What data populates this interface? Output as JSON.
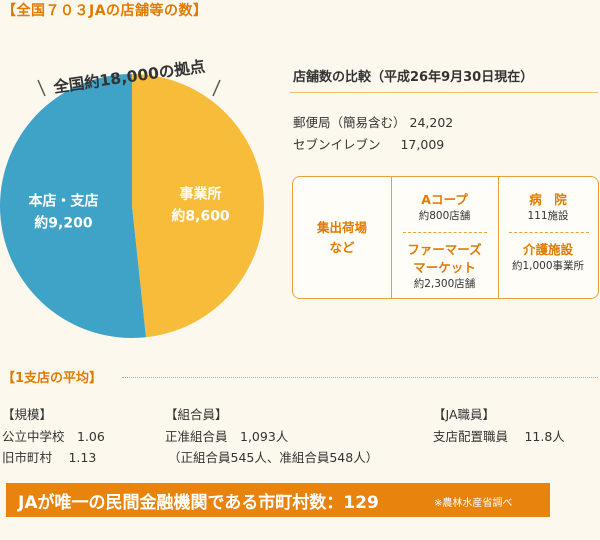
{
  "header": {
    "title": "【全国７０３JAの店舗等の数】"
  },
  "chart_data": {
    "type": "pie",
    "title": "全国約18,000の拠点",
    "slices": [
      {
        "label": "事業所",
        "value_text": "約8,600",
        "value": 8600,
        "color": "#f8bc3b"
      },
      {
        "label": "本店・支店",
        "value_text": "約9,200",
        "value": 9200,
        "color": "#3fa2c7"
      }
    ]
  },
  "comparison": {
    "title": "店舗数の比較（平成26年9月30日現在）",
    "rows": [
      {
        "name": "郵便局（簡易含む）",
        "value": "24,202"
      },
      {
        "name": "セブンイレブン",
        "value": "17,009"
      }
    ]
  },
  "facilities": {
    "col1": {
      "label": "集出荷場",
      "label2": "など"
    },
    "col2": [
      {
        "label": "Aコープ",
        "sub": "約800店舗"
      },
      {
        "label": "ファーマーズ",
        "label2": "マーケット",
        "sub": "約2,300店舗"
      }
    ],
    "col3": [
      {
        "label": "病　院",
        "sub": "111施設"
      },
      {
        "label": "介護施設",
        "sub": "約1,000事業所"
      }
    ]
  },
  "averages": {
    "title": "【1支店の平均】",
    "scale": {
      "head": "【規模】",
      "lines": [
        "公立中学校　1.06",
        "旧市町村　 1.13"
      ]
    },
    "members": {
      "head": "【組合員】",
      "lines": [
        "正准組合員　1,093人",
        "（正組合員545人、准組合員548人）"
      ]
    },
    "staff": {
      "head": "【JA職員】",
      "lines": [
        "支店配置職員　 11.8人"
      ]
    }
  },
  "banner": {
    "text": "JAが唯一の民間金融機関である市町村数：129",
    "note": "※農林水産省調べ",
    "color": "#e8830e"
  }
}
